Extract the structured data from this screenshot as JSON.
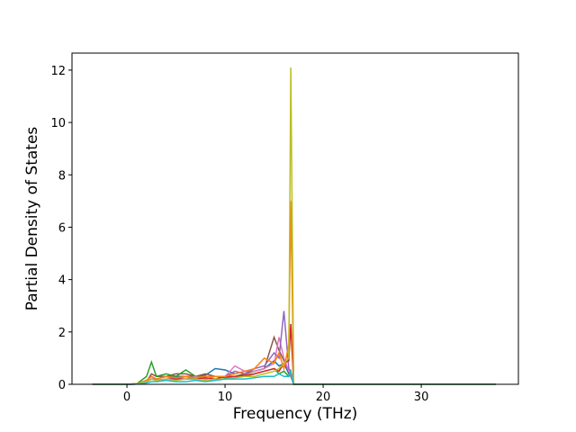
{
  "chart_data": {
    "type": "line",
    "xlabel": "Frequency (THz)",
    "ylabel": "Partial Density of States",
    "xlim": [
      -5.6,
      39.9
    ],
    "ylim": [
      0,
      12.65
    ],
    "xticks": [
      0,
      10,
      20,
      30
    ],
    "yticks": [
      0,
      2,
      4,
      6,
      8,
      10,
      12
    ],
    "x": [
      -3.5,
      0,
      1,
      2,
      2.5,
      3,
      4,
      5,
      6,
      7,
      8,
      9,
      10,
      11,
      12,
      13,
      14,
      15,
      15.5,
      16,
      16.5,
      16.7,
      17,
      20,
      30,
      37.6
    ],
    "series": [
      {
        "color": "#1f77b4",
        "values": [
          0,
          0,
          0.02,
          0.15,
          0.3,
          0.2,
          0.3,
          0.3,
          0.3,
          0.3,
          0.35,
          0.6,
          0.55,
          0.4,
          0.5,
          0.5,
          0.6,
          0.9,
          0.7,
          0.8,
          0.4,
          0.5,
          0,
          0,
          0,
          0
        ]
      },
      {
        "color": "#8c564b",
        "values": [
          0,
          0,
          0.01,
          0.1,
          0.4,
          0.3,
          0.3,
          0.4,
          0.4,
          0.3,
          0.4,
          0.3,
          0.3,
          0.3,
          0.4,
          0.5,
          0.6,
          1.8,
          1.3,
          0.9,
          0.5,
          0.3,
          0,
          0,
          0,
          0
        ]
      },
      {
        "color": "#2ca02c",
        "values": [
          0,
          0,
          0.02,
          0.3,
          0.85,
          0.3,
          0.4,
          0.3,
          0.55,
          0.3,
          0.3,
          0.3,
          0.25,
          0.3,
          0.3,
          0.4,
          0.5,
          0.6,
          0.4,
          0.5,
          0.3,
          0.4,
          0,
          0,
          0,
          0
        ]
      },
      {
        "color": "#e377c2",
        "values": [
          0,
          0,
          0.01,
          0.1,
          0.2,
          0.2,
          0.3,
          0.2,
          0.2,
          0.3,
          0.2,
          0.3,
          0.3,
          0.7,
          0.5,
          0.5,
          0.6,
          0.8,
          1.8,
          1.0,
          0.5,
          0.4,
          0,
          0,
          0,
          0
        ]
      },
      {
        "color": "#9467bd",
        "values": [
          0,
          0,
          0.01,
          0.1,
          0.2,
          0.2,
          0.3,
          0.2,
          0.3,
          0.2,
          0.3,
          0.3,
          0.3,
          0.5,
          0.4,
          0.6,
          0.7,
          1.2,
          1.0,
          2.8,
          0.6,
          0.5,
          0,
          0,
          0,
          0
        ]
      },
      {
        "color": "#d62728",
        "values": [
          0,
          0,
          0.01,
          0.1,
          0.2,
          0.15,
          0.2,
          0.2,
          0.2,
          0.2,
          0.25,
          0.2,
          0.3,
          0.3,
          0.35,
          0.4,
          0.5,
          0.6,
          0.5,
          0.8,
          0.9,
          2.3,
          0,
          0,
          0,
          0
        ]
      },
      {
        "color": "#ff7f0e",
        "values": [
          0,
          0,
          0.02,
          0.15,
          0.3,
          0.2,
          0.3,
          0.25,
          0.3,
          0.25,
          0.3,
          0.3,
          0.3,
          0.4,
          0.5,
          0.6,
          1.0,
          0.8,
          1.2,
          0.6,
          1.5,
          7.0,
          0,
          0,
          0,
          0
        ]
      },
      {
        "color": "#bcbd22",
        "values": [
          0,
          0,
          0.02,
          0.1,
          0.2,
          0.15,
          0.2,
          0.15,
          0.2,
          0.2,
          0.15,
          0.2,
          0.2,
          0.25,
          0.3,
          0.3,
          0.4,
          0.5,
          0.6,
          0.8,
          1.0,
          12.1,
          0,
          0,
          0,
          0
        ]
      },
      {
        "color": "#17becf",
        "values": [
          0,
          0,
          0.01,
          0.05,
          0.1,
          0.1,
          0.15,
          0.1,
          0.1,
          0.15,
          0.1,
          0.15,
          0.2,
          0.2,
          0.2,
          0.25,
          0.3,
          0.3,
          0.4,
          0.3,
          0.3,
          0.5,
          0,
          0,
          0,
          0
        ]
      }
    ]
  }
}
